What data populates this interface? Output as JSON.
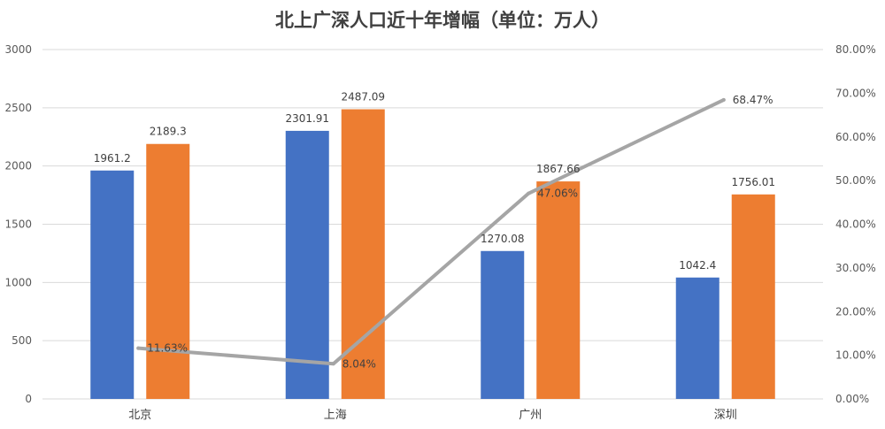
{
  "chart_data": {
    "type": "bar",
    "title": "北上广深人口近十年增幅（单位：万人）",
    "categories": [
      "北京",
      "上海",
      "广州",
      "深圳"
    ],
    "series": [
      {
        "values": [
          1961.2,
          2301.91,
          1270.08,
          1042.4
        ],
        "color": "#4472c4",
        "labels": [
          "1961.2",
          "2301.91",
          "1270.08",
          "1042.4"
        ]
      },
      {
        "values": [
          2189.3,
          2487.09,
          1867.66,
          1756.01
        ],
        "color": "#ed7d31",
        "labels": [
          "2189.3",
          "2487.09",
          "1867.66",
          "1756.01"
        ]
      },
      {
        "type": "line",
        "axis": "secondary",
        "values": [
          11.63,
          8.04,
          47.06,
          68.47
        ],
        "color": "#a5a5a5",
        "labels": [
          "11.63%",
          "8.04%",
          "47.06%",
          "68.47%"
        ]
      }
    ],
    "y_axis": {
      "min": 0,
      "max": 3000,
      "ticks": [
        "0",
        "500",
        "1000",
        "1500",
        "2000",
        "2500",
        "3000"
      ]
    },
    "y2_axis": {
      "min": 0,
      "max": 80,
      "ticks": [
        "0.00%",
        "10.00%",
        "20.00%",
        "30.00%",
        "40.00%",
        "50.00%",
        "60.00%",
        "70.00%",
        "80.00%"
      ]
    },
    "grid": true,
    "legend": "none"
  }
}
